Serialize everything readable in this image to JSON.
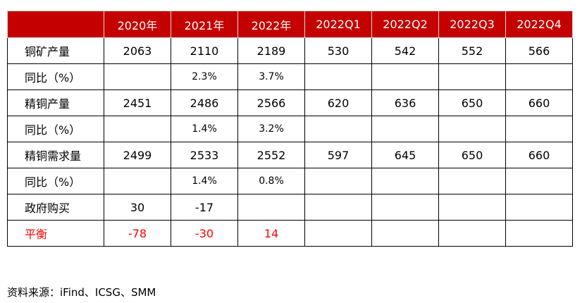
{
  "table": {
    "headers": [
      "",
      "2020年",
      "2021年",
      "2022年",
      "2022Q1",
      "2022Q2",
      "2022Q3",
      "2022Q4"
    ],
    "rows": [
      {
        "label": "铜矿产量",
        "cells": [
          "2063",
          "2110",
          "2189",
          "530",
          "542",
          "552",
          "566"
        ],
        "small": false,
        "red": false
      },
      {
        "label": "同比（%）",
        "cells": [
          "",
          "2.3%",
          "3.7%",
          "",
          "",
          "",
          ""
        ],
        "small": true,
        "red": false
      },
      {
        "label": "精铜产量",
        "cells": [
          "2451",
          "2486",
          "2566",
          "620",
          "636",
          "650",
          "660"
        ],
        "small": false,
        "red": false
      },
      {
        "label": "同比（%）",
        "cells": [
          "",
          "1.4%",
          "3.2%",
          "",
          "",
          "",
          ""
        ],
        "small": true,
        "red": false
      },
      {
        "label": "精铜需求量",
        "cells": [
          "2499",
          "2533",
          "2552",
          "597",
          "645",
          "650",
          "660"
        ],
        "small": false,
        "red": false
      },
      {
        "label": "同比（%）",
        "cells": [
          "",
          "1.4%",
          "0.8%",
          "",
          "",
          "",
          ""
        ],
        "small": true,
        "red": false
      },
      {
        "label": "政府购买",
        "cells": [
          "30",
          "-17",
          "",
          "",
          "",
          "",
          ""
        ],
        "small": false,
        "red": false
      },
      {
        "label": "平衡",
        "cells": [
          "-78",
          "-30",
          "14",
          "",
          "",
          "",
          ""
        ],
        "small": false,
        "red": true
      }
    ]
  },
  "source": "资料来源：iFind、ICSG、SMM",
  "colors": {
    "header_bg": "#c40000",
    "header_text": "#ffffff",
    "highlight_text": "#ff0000"
  }
}
